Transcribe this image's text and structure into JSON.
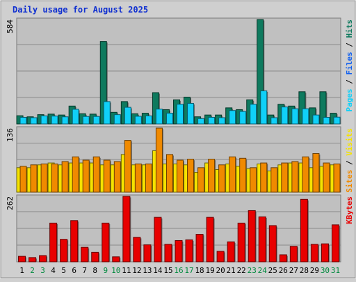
{
  "chart_data": {
    "type": "bar",
    "title": "Daily usage for August 2025",
    "categories": [
      "1",
      "2",
      "3",
      "4",
      "5",
      "6",
      "7",
      "8",
      "9",
      "10",
      "11",
      "12",
      "13",
      "14",
      "15",
      "16",
      "17",
      "18",
      "19",
      "20",
      "21",
      "22",
      "23",
      "24",
      "25",
      "26",
      "27",
      "28",
      "29",
      "30",
      "31"
    ],
    "weekend_days": [
      "2",
      "3",
      "9",
      "10",
      "16",
      "17",
      "23",
      "24",
      "30",
      "31"
    ],
    "panels": [
      {
        "id": "hits-files",
        "ylim": [
          0,
          584
        ],
        "max_label": "584",
        "right_labels": [
          "Pages",
          "Files",
          "Hits"
        ],
        "series": [
          {
            "name": "Hits",
            "color": "#0e7a5e",
            "values": [
              46,
              40,
              52,
              55,
              50,
              100,
              57,
              55,
              461,
              65,
              125,
              57,
              60,
              175,
              80,
              135,
              150,
              40,
              50,
              50,
              90,
              80,
              135,
              584,
              50,
              110,
              100,
              180,
              90,
              180,
              60
            ]
          },
          {
            "name": "Files",
            "color": "#10d0f8",
            "values": [
              37,
              35,
              45,
              44,
              40,
              82,
              42,
              42,
              125,
              52,
              93,
              43,
              45,
              83,
              60,
              110,
              115,
              30,
              37,
              35,
              75,
              70,
              110,
              185,
              35,
              95,
              85,
              85,
              50,
              37,
              38
            ]
          }
        ]
      },
      {
        "id": "visits-sites",
        "ylim": [
          0,
          136
        ],
        "max_label": "136",
        "right_labels": [
          "Sites",
          "Visits"
        ],
        "series": [
          {
            "name": "Visits",
            "color": "#f5e300",
            "values": [
              52,
              52,
              58,
              62,
              58,
              62,
              62,
              62,
              58,
              58,
              80,
              58,
              58,
              88,
              60,
              60,
              58,
              42,
              62,
              48,
              60,
              55,
              50,
              60,
              45,
              58,
              62,
              62,
              52,
              55,
              58
            ]
          },
          {
            "name": "Sites",
            "color": "#f08a00",
            "values": [
              55,
              58,
              60,
              60,
              65,
              75,
              68,
              75,
              68,
              65,
              110,
              60,
              60,
              136,
              80,
              68,
              70,
              52,
              70,
              58,
              75,
              72,
              52,
              62,
              52,
              62,
              65,
              75,
              82,
              62,
              60
            ]
          }
        ]
      },
      {
        "id": "kbytes",
        "ylim": [
          0,
          262
        ],
        "max_label": "262",
        "right_labels": [
          "KBytes"
        ],
        "series": [
          {
            "name": "KBytes",
            "color": "#e80000",
            "values": [
              22,
              17,
              25,
              155,
              90,
              165,
              58,
              38,
              155,
              20,
              262,
              98,
              68,
              178,
              70,
              85,
              88,
              110,
              178,
              42,
              80,
              155,
              205,
              180,
              145,
              28,
              62,
              250,
              70,
              72,
              148
            ]
          }
        ]
      }
    ]
  }
}
